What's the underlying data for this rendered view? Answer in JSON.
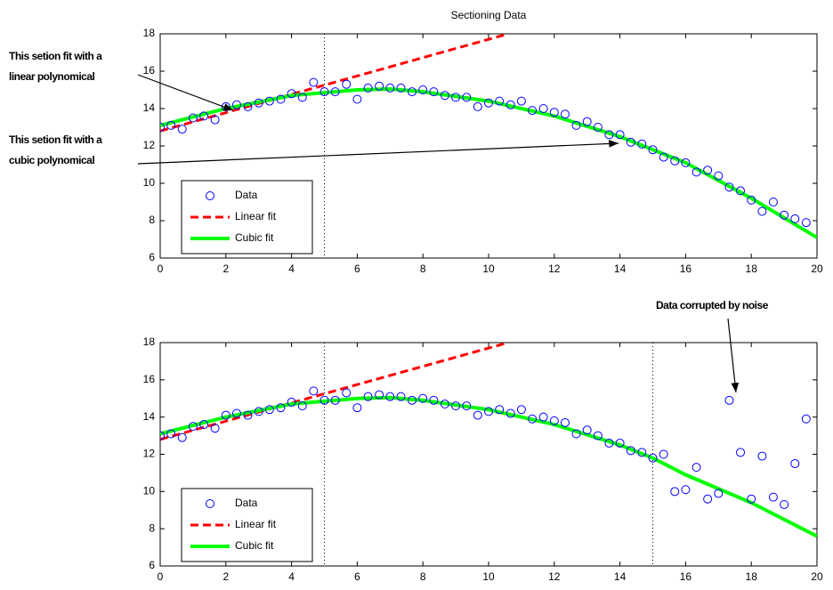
{
  "chart_data": [
    {
      "type": "scatter-fit",
      "title": "Sectioning Data",
      "xlim": [
        0,
        20
      ],
      "ylim": [
        6,
        18
      ],
      "xticks": [
        0,
        2,
        4,
        6,
        8,
        10,
        12,
        14,
        16,
        18,
        20
      ],
      "yticks": [
        6,
        8,
        10,
        12,
        14,
        16,
        18
      ],
      "legend": "lower left",
      "vlines": [
        5
      ],
      "series": [
        {
          "name": "Data",
          "color": "#0000ff",
          "style": "marker",
          "x": [
            0,
            0.33,
            0.67,
            1,
            1.33,
            1.67,
            2,
            2.33,
            2.67,
            3,
            3.33,
            3.67,
            4,
            4.33,
            4.67,
            5,
            5.33,
            5.67,
            6,
            6.33,
            6.67,
            7,
            7.33,
            7.67,
            8,
            8.33,
            8.67,
            9,
            9.33,
            9.67,
            10,
            10.33,
            10.67,
            11,
            11.33,
            11.67,
            12,
            12.33,
            12.67,
            13,
            13.33,
            13.67,
            14,
            14.33,
            14.67,
            15,
            15.33,
            15.67,
            16,
            16.33,
            16.67,
            17,
            17.33,
            17.67,
            18,
            18.33,
            18.67,
            19,
            19.33,
            19.67
          ],
          "values": [
            13.0,
            13.1,
            12.9,
            13.5,
            13.6,
            13.4,
            14.1,
            14.2,
            14.1,
            14.3,
            14.4,
            14.5,
            14.8,
            14.6,
            15.4,
            14.9,
            14.9,
            15.3,
            14.5,
            15.1,
            15.2,
            15.1,
            15.1,
            14.9,
            15.0,
            14.9,
            14.7,
            14.6,
            14.6,
            14.1,
            14.3,
            14.4,
            14.2,
            14.4,
            13.9,
            14.0,
            13.8,
            13.7,
            13.1,
            13.3,
            13.0,
            12.6,
            12.6,
            12.2,
            12.1,
            11.8,
            11.4,
            11.2,
            11.1,
            10.6,
            10.7,
            10.4,
            9.8,
            9.6,
            9.1,
            8.5,
            9.0,
            8.3,
            8.1,
            7.9
          ]
        },
        {
          "name": "Linear fit",
          "color": "#ff0000",
          "style": "dashed",
          "x": [
            0,
            10.6
          ],
          "values": [
            12.8,
            18
          ]
        },
        {
          "name": "Cubic fit",
          "color": "#00ff00",
          "style": "solid",
          "x": [
            0,
            2,
            4,
            6,
            7,
            8,
            10,
            12,
            14,
            16,
            18,
            20
          ],
          "values": [
            13.1,
            14.0,
            14.7,
            15.0,
            15.05,
            14.9,
            14.4,
            13.6,
            12.5,
            11.1,
            9.2,
            7.1
          ]
        }
      ],
      "annotations": [
        {
          "lines": [
            "This setion fit with a",
            "linear polynomical"
          ]
        },
        {
          "lines": [
            "This setion fit with a",
            "cubic polynomical"
          ]
        }
      ]
    },
    {
      "type": "scatter-fit",
      "xlim": [
        0,
        20
      ],
      "ylim": [
        6,
        18
      ],
      "xticks": [
        0,
        2,
        4,
        6,
        8,
        10,
        12,
        14,
        16,
        18,
        20
      ],
      "yticks": [
        6,
        8,
        10,
        12,
        14,
        16,
        18
      ],
      "legend": "lower left",
      "vlines": [
        5,
        15
      ],
      "series": [
        {
          "name": "Data",
          "color": "#0000ff",
          "style": "marker",
          "x": [
            0,
            0.33,
            0.67,
            1,
            1.33,
            1.67,
            2,
            2.33,
            2.67,
            3,
            3.33,
            3.67,
            4,
            4.33,
            4.67,
            5,
            5.33,
            5.67,
            6,
            6.33,
            6.67,
            7,
            7.33,
            7.67,
            8,
            8.33,
            8.67,
            9,
            9.33,
            9.67,
            10,
            10.33,
            10.67,
            11,
            11.33,
            11.67,
            12,
            12.33,
            12.67,
            13,
            13.33,
            13.67,
            14,
            14.33,
            14.67,
            15,
            15.33,
            15.67,
            16,
            16.33,
            16.67,
            17,
            17.33,
            17.67,
            18,
            18.33,
            18.67,
            19,
            19.33,
            19.67
          ],
          "values": [
            13.0,
            13.1,
            12.9,
            13.5,
            13.6,
            13.4,
            14.1,
            14.2,
            14.1,
            14.3,
            14.4,
            14.5,
            14.8,
            14.6,
            15.4,
            14.9,
            14.9,
            15.3,
            14.5,
            15.1,
            15.2,
            15.1,
            15.1,
            14.9,
            15.0,
            14.9,
            14.7,
            14.6,
            14.6,
            14.1,
            14.3,
            14.4,
            14.2,
            14.4,
            13.9,
            14.0,
            13.8,
            13.7,
            13.1,
            13.3,
            13.0,
            12.6,
            12.6,
            12.2,
            12.1,
            11.8,
            12.0,
            10.0,
            10.1,
            11.3,
            9.6,
            9.9,
            14.9,
            12.1,
            9.6,
            11.9,
            9.7,
            9.3,
            11.5,
            13.9
          ]
        },
        {
          "name": "Linear fit",
          "color": "#ff0000",
          "style": "dashed",
          "x": [
            0,
            10.6
          ],
          "values": [
            12.8,
            18
          ]
        },
        {
          "name": "Cubic fit",
          "color": "#00ff00",
          "style": "solid",
          "x": [
            0,
            2,
            4,
            6,
            7,
            8,
            10,
            12,
            14,
            15,
            16,
            18,
            20
          ],
          "values": [
            13.1,
            14.0,
            14.7,
            15.0,
            15.05,
            14.9,
            14.4,
            13.6,
            12.5,
            11.8,
            10.9,
            9.4,
            7.6
          ]
        }
      ],
      "annotations": [
        {
          "lines": [
            "Data corrupted by noise"
          ]
        }
      ]
    }
  ]
}
